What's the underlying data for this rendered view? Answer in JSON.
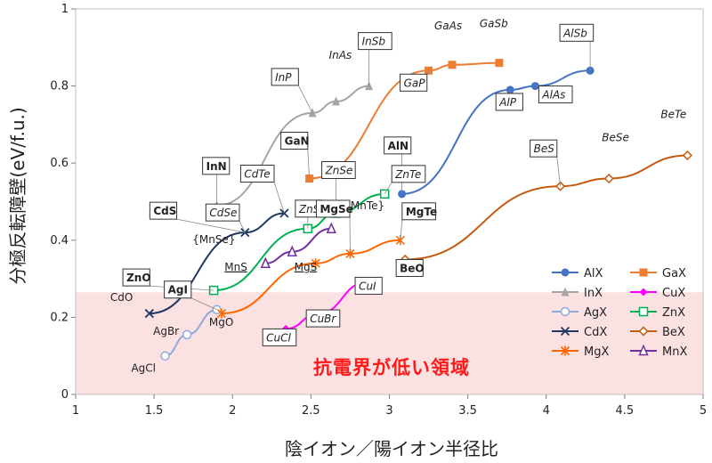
{
  "chart_data": {
    "type": "scatter",
    "title": "",
    "xlabel": "陰イオン／陽イオン半径比",
    "ylabel": "分極反転障壁(eV/f.u.)",
    "xlim": [
      1,
      5
    ],
    "ylim": [
      0,
      1
    ],
    "x_ticks": [
      "1",
      "1.5",
      "2",
      "2.5",
      "3",
      "3.5",
      "4",
      "4.5",
      "5"
    ],
    "y_ticks": [
      "0",
      "0.2",
      "0.4",
      "0.6",
      "0.8",
      "1"
    ],
    "shaded_region": {
      "y_from": 0,
      "y_to": 0.265,
      "color": "#fbe1e1",
      "label": "抗電界が低い領域"
    },
    "series": [
      {
        "name": "AlX",
        "color": "#4472c4",
        "marker": "circle-filled",
        "x": [
          3.08,
          3.77,
          3.93,
          4.28
        ],
        "y": [
          0.52,
          0.79,
          0.8,
          0.84
        ]
      },
      {
        "name": "GaX",
        "color": "#ed7d31",
        "marker": "square-filled",
        "x": [
          2.49,
          3.25,
          3.4,
          3.7
        ],
        "y": [
          0.56,
          0.84,
          0.855,
          0.86
        ]
      },
      {
        "name": "InX",
        "color": "#a5a5a5",
        "marker": "triangle-filled",
        "x": [
          1.9,
          2.51,
          2.66,
          2.87
        ],
        "y": [
          0.49,
          0.73,
          0.76,
          0.8
        ]
      },
      {
        "name": "CuX",
        "color": "#ff00ff",
        "marker": "diamond-filled",
        "x": [
          2.34,
          2.55,
          2.85
        ],
        "y": [
          0.17,
          0.21,
          0.29
        ]
      },
      {
        "name": "AgX",
        "color": "#8faadc",
        "marker": "circle-open",
        "x": [
          1.57,
          1.71,
          1.9
        ],
        "y": [
          0.1,
          0.155,
          0.22
        ]
      },
      {
        "name": "ZnX",
        "color": "#00b050",
        "marker": "square-open",
        "x": [
          1.88,
          2.48,
          2.66,
          2.97
        ],
        "y": [
          0.27,
          0.43,
          0.47,
          0.52
        ]
      },
      {
        "name": "CdX",
        "color": "#1f3864",
        "marker": "x",
        "x": [
          1.47,
          2.08,
          2.33
        ],
        "y": [
          0.21,
          0.42,
          0.47
        ]
      },
      {
        "name": "BeX",
        "color": "#c55a11",
        "marker": "diamond-open",
        "x": [
          3.1,
          4.09,
          4.4,
          4.9
        ],
        "y": [
          0.35,
          0.54,
          0.56,
          0.62
        ]
      },
      {
        "name": "MgX",
        "color": "#ff6600",
        "marker": "star",
        "x": [
          1.93,
          2.53,
          2.75,
          3.07
        ],
        "y": [
          0.21,
          0.34,
          0.365,
          0.4
        ]
      },
      {
        "name": "MnX",
        "color": "#7030a0",
        "marker": "triangle-open",
        "x": [
          2.21,
          2.38,
          2.63
        ],
        "y": [
          0.34,
          0.37,
          0.43
        ]
      }
    ],
    "annotations": [
      {
        "text": "InN",
        "style": "box-bold",
        "x": 1.9,
        "y": 0.49
      },
      {
        "text": "InP",
        "style": "box-italic",
        "x": 2.51,
        "y": 0.73
      },
      {
        "text": "InAs",
        "style": "italic",
        "x": 2.66,
        "y": 0.76
      },
      {
        "text": "InSb",
        "style": "box-italic",
        "x": 2.87,
        "y": 0.8
      },
      {
        "text": "GaN",
        "style": "box-bold",
        "x": 2.49,
        "y": 0.56
      },
      {
        "text": "GaP",
        "style": "box-italic",
        "x": 3.25,
        "y": 0.84
      },
      {
        "text": "GaAs",
        "style": "italic",
        "x": 3.4,
        "y": 0.855
      },
      {
        "text": "GaSb",
        "style": "italic",
        "x": 3.7,
        "y": 0.86
      },
      {
        "text": "AlN",
        "style": "box-bold",
        "x": 3.08,
        "y": 0.52
      },
      {
        "text": "AlP",
        "style": "box-italic",
        "x": 3.77,
        "y": 0.79
      },
      {
        "text": "AlAs",
        "style": "box-italic",
        "x": 3.93,
        "y": 0.8
      },
      {
        "text": "AlSb",
        "style": "box-italic",
        "x": 4.28,
        "y": 0.84
      },
      {
        "text": "BeS",
        "style": "box-italic",
        "x": 4.09,
        "y": 0.54
      },
      {
        "text": "BeSe",
        "style": "italic",
        "x": 4.4,
        "y": 0.56
      },
      {
        "text": "BeTe",
        "style": "italic",
        "x": 4.9,
        "y": 0.62
      },
      {
        "text": "BeO",
        "style": "box-bold",
        "x": 3.1,
        "y": 0.35
      },
      {
        "text": "CdTe",
        "style": "box-italic",
        "x": 2.33,
        "y": 0.47
      },
      {
        "text": "CdSe",
        "style": "box-italic",
        "x": 2.08,
        "y": 0.42
      },
      {
        "text": "ZnS",
        "style": "box-italic",
        "x": 2.48,
        "y": 0.43
      },
      {
        "text": "ZnSe",
        "style": "box-italic",
        "x": 2.66,
        "y": 0.47
      },
      {
        "text": "ZnTe",
        "style": "box-italic",
        "x": 2.97,
        "y": 0.52
      },
      {
        "text": "CdS",
        "style": "box-bold",
        "x": 2.08,
        "y": 0.42
      },
      {
        "text": "ZnO",
        "style": "box-bold",
        "x": 1.88,
        "y": 0.27
      },
      {
        "text": "{MnTe}",
        "style": "plain",
        "x": 2.63,
        "y": 0.43
      },
      {
        "text": "{MnSe}",
        "style": "plain",
        "x": 2.38,
        "y": 0.37
      },
      {
        "text": "MnS",
        "style": "underline",
        "x": 2.21,
        "y": 0.34
      },
      {
        "text": "MgS",
        "style": "underline",
        "x": 2.53,
        "y": 0.34
      },
      {
        "text": "MgSe",
        "style": "box-bold",
        "x": 2.75,
        "y": 0.365
      },
      {
        "text": "MgTe",
        "style": "box-bold",
        "x": 3.07,
        "y": 0.4
      },
      {
        "text": "MgO",
        "style": "plain",
        "x": 1.93,
        "y": 0.21
      },
      {
        "text": "AgI",
        "style": "box-bold",
        "x": 1.9,
        "y": 0.22
      },
      {
        "text": "AgBr",
        "style": "plain",
        "x": 1.71,
        "y": 0.155
      },
      {
        "text": "AgCl",
        "style": "plain",
        "x": 1.57,
        "y": 0.1
      },
      {
        "text": "CdO",
        "style": "plain",
        "x": 1.47,
        "y": 0.21
      },
      {
        "text": "CuI",
        "style": "box-italic",
        "x": 2.85,
        "y": 0.29
      },
      {
        "text": "CuBr",
        "style": "box-italic",
        "x": 2.55,
        "y": 0.21
      },
      {
        "text": "CuCl",
        "style": "box-italic",
        "x": 2.34,
        "y": 0.17
      }
    ]
  }
}
